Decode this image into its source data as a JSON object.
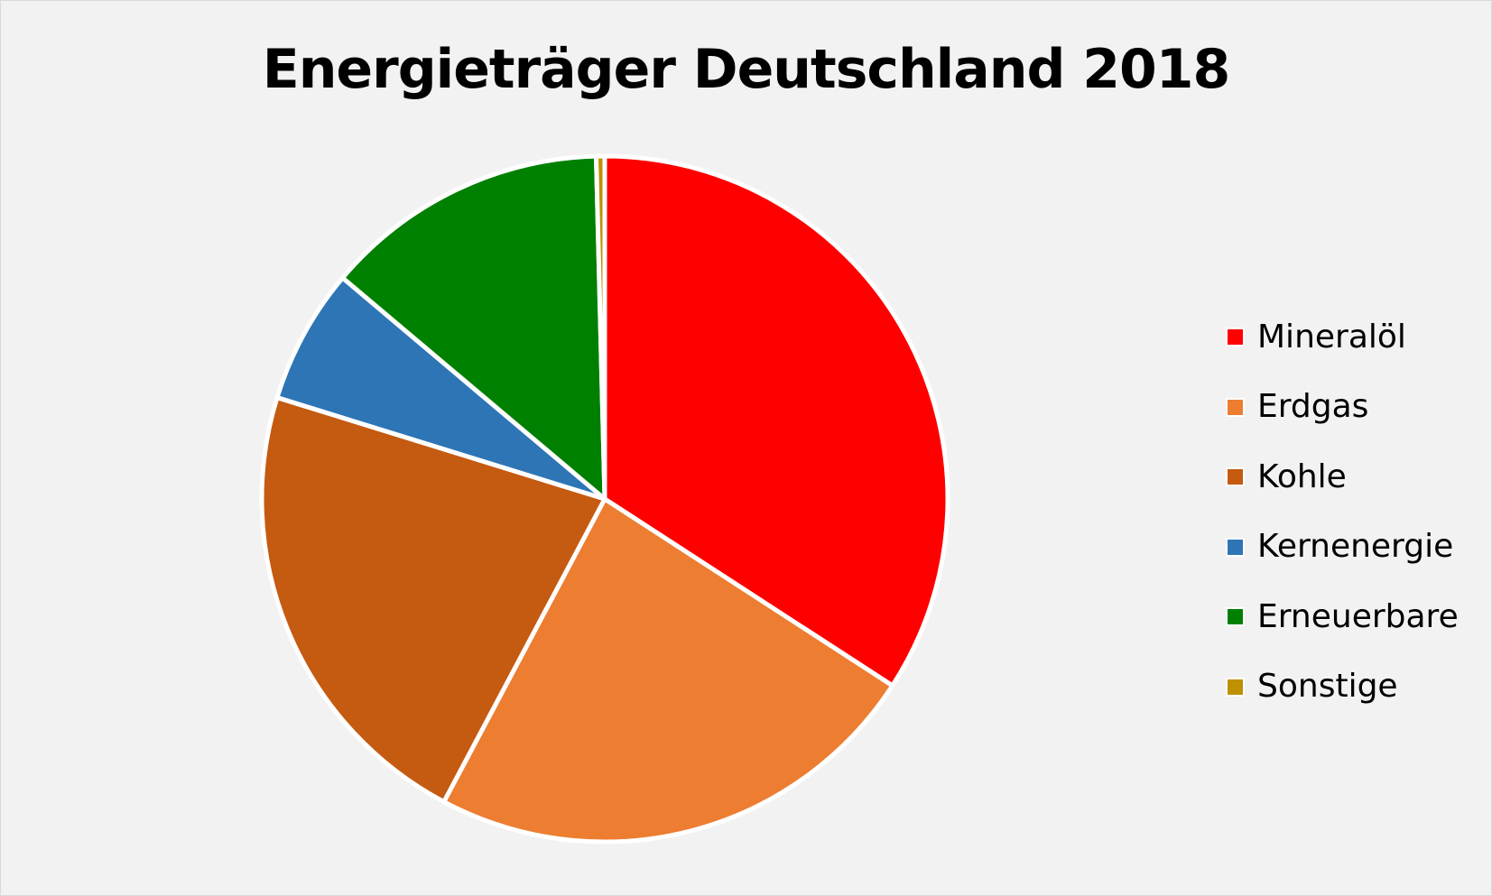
{
  "chart_data": {
    "type": "pie",
    "title": "Energieträger Deutschland 2018",
    "legend_position": "right",
    "start_angle_deg": 0,
    "direction": "clockwise",
    "slices": [
      {
        "name": "Mineralöl",
        "value": 34.3,
        "color": "#ff0000"
      },
      {
        "name": "Erdgas",
        "value": 23.7,
        "color": "#ed7d31"
      },
      {
        "name": "Kohle",
        "value": 22.1,
        "color": "#c55a11"
      },
      {
        "name": "Kernenergie",
        "value": 6.4,
        "color": "#2e75b6"
      },
      {
        "name": "Erneuerbare",
        "value": 13.5,
        "color": "#008000"
      },
      {
        "name": "Sonstige",
        "value": 0.4,
        "color": "#bf9000"
      }
    ]
  }
}
